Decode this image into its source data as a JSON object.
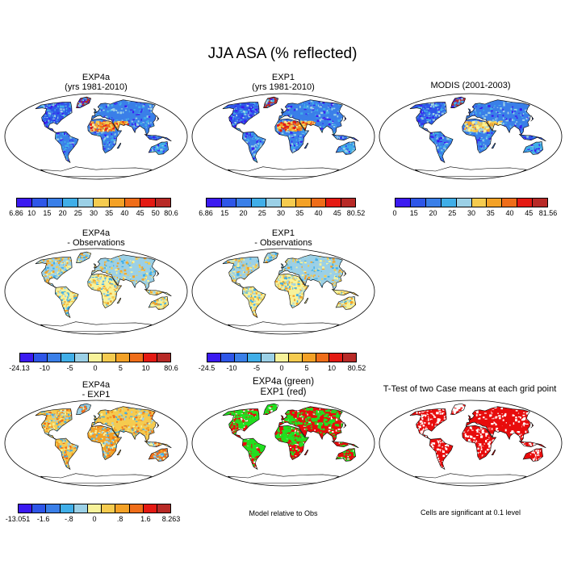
{
  "title": "JJA ASA (% reflected)",
  "colors": {
    "ramp": [
      "#3b1af0",
      "#2e56e8",
      "#3a7fe8",
      "#40aee8",
      "#9bd0e6",
      "#f7f29a",
      "#f5cb4f",
      "#f3a126",
      "#ef6d19",
      "#e41a13",
      "#b82a27"
    ],
    "ocean": "#ffffff",
    "coast": "#000000",
    "sig": "#e80c0c",
    "green": "#20e020",
    "red": "#e80c0c"
  },
  "panels": [
    {
      "id": "p1",
      "title1": "EXP4a",
      "title2": "(yrs 1981-2010)",
      "style": "abs1",
      "ticks": [
        "6.86",
        "10",
        "15",
        "20",
        "25",
        "30",
        "35",
        "40",
        "45",
        "50",
        "80.6"
      ]
    },
    {
      "id": "p2",
      "title1": "EXP1",
      "title2": "(yrs 1981-2010)",
      "style": "abs2",
      "ticks": [
        "6.86",
        "15",
        "20",
        "25",
        "30",
        "35",
        "40",
        "45",
        "80.52"
      ]
    },
    {
      "id": "p3",
      "title1": "MODIS (2001-2003)",
      "title2": "",
      "style": "abs3",
      "ticks": [
        "0",
        "15",
        "20",
        "25",
        "30",
        "35",
        "40",
        "45",
        "81.56"
      ]
    },
    {
      "id": "p4",
      "title1": "EXP4a",
      "title2": "- Observations",
      "style": "diff1",
      "ticks": [
        "-24.13",
        "-10",
        "-5",
        "0",
        "5",
        "10",
        "80.6"
      ]
    },
    {
      "id": "p5",
      "title1": "EXP1",
      "title2": "- Observations",
      "style": "diff2",
      "ticks": [
        "-24.5",
        "-10",
        "-5",
        "0",
        "5",
        "10",
        "80.52"
      ]
    },
    {
      "id": "p7",
      "title1": "EXP4a",
      "title2": "- EXP1",
      "style": "diff3",
      "ticks": [
        "-13.051",
        "-1.6",
        "-.8",
        "0",
        ".8",
        "1.6",
        "8.263"
      ]
    },
    {
      "id": "p8",
      "title1": "EXP4a (green)",
      "title2": "EXP1 (red)",
      "style": "gr"
    },
    {
      "id": "p9",
      "title1": "T-Test of two Case means at each grid point",
      "title2": "",
      "style": "sig"
    }
  ],
  "notes": {
    "model_relative": "Model relative to Obs",
    "significance": "Cells are significant at 0.1 level"
  }
}
